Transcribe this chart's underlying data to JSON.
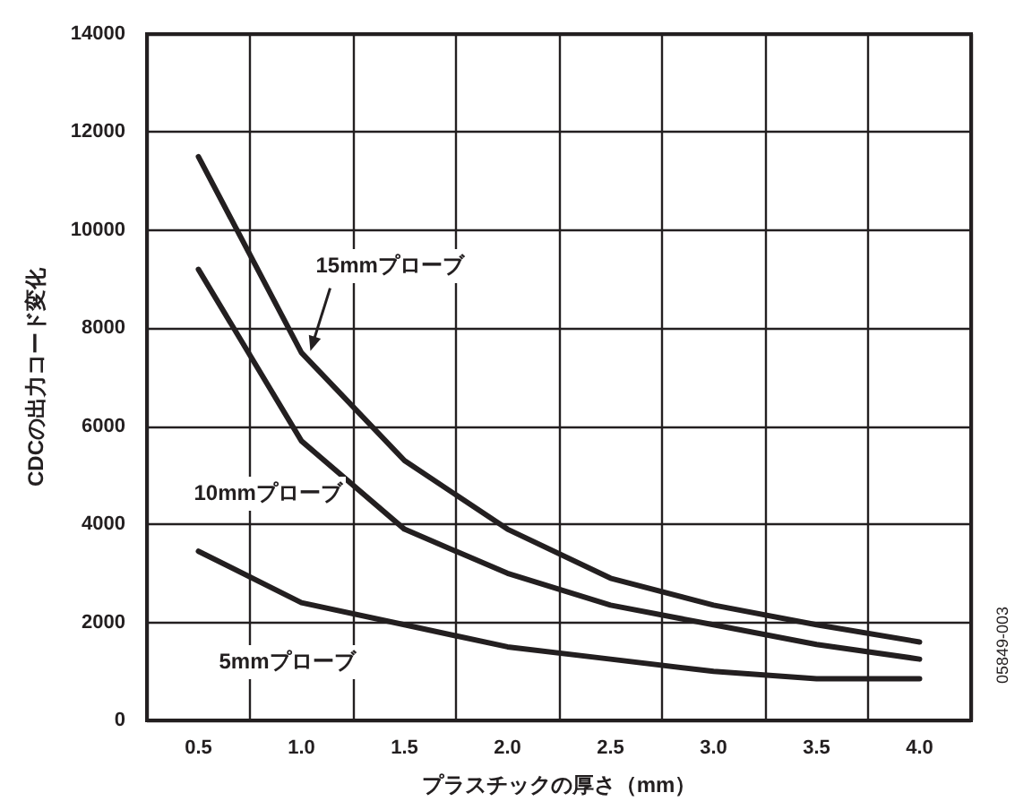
{
  "chart_data": {
    "type": "line",
    "xlabel": "プラスチックの厚さ（mm）",
    "ylabel": "CDCの出力コード変化",
    "categories": [
      "0.5",
      "1.0",
      "1.5",
      "2.0",
      "2.5",
      "3.0",
      "3.5",
      "4.0"
    ],
    "series": [
      {
        "name": "15mmプローブ",
        "color": "#231f20",
        "values": [
          11500,
          7500,
          5300,
          3900,
          2900,
          2350,
          1950,
          1600
        ]
      },
      {
        "name": "10mmプローブ",
        "color": "#231f20",
        "values": [
          9200,
          5700,
          3900,
          3000,
          2350,
          1950,
          1550,
          1250
        ]
      },
      {
        "name": "5mmプローブ",
        "color": "#231f20",
        "values": [
          3450,
          2400,
          1950,
          1500,
          1250,
          1000,
          850,
          850
        ]
      }
    ],
    "ylim": [
      0,
      14000
    ],
    "yticks": [
      0,
      2000,
      4000,
      6000,
      8000,
      10000,
      12000,
      14000
    ],
    "grid": true,
    "legend": false,
    "marker": "none",
    "line_style": "solid",
    "annotations": [
      "05849-003"
    ]
  }
}
